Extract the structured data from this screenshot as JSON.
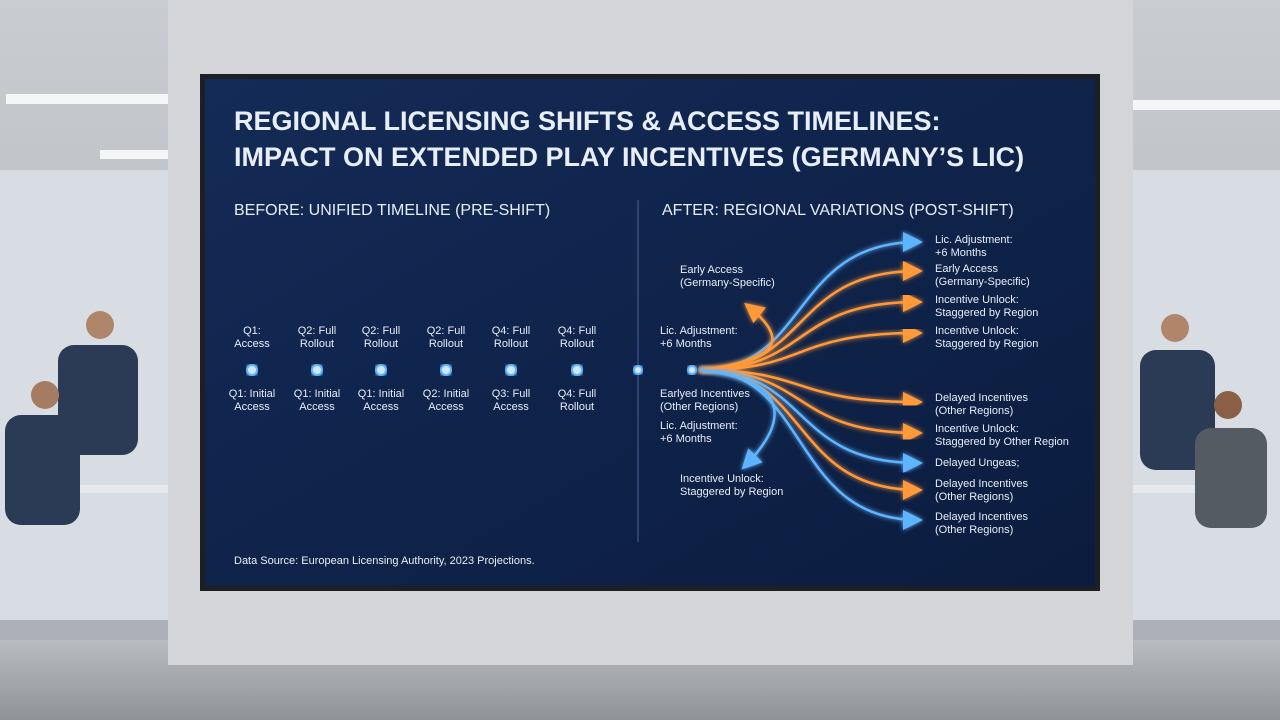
{
  "title": {
    "lines": [
      "REGIONAL LICENSING SHIFTS & ACCESS TIMELINES:",
      "IMPACT ON EXTENDED PLAY INCENTIVES (GERMANY’S LIC)"
    ]
  },
  "before": {
    "heading": "BEFORE: UNIFIED TIMELINE (PRE-SHIFT)",
    "top_labels": [
      [
        "Q1:",
        "Access"
      ],
      [
        "Q2: Full",
        "Rollout"
      ],
      [
        "Q2: Full",
        "Rollout"
      ],
      [
        "Q2: Full",
        "Rollout"
      ],
      [
        "Q4: Full",
        "Rollout"
      ],
      [
        "Q4: Full",
        "Rollout"
      ]
    ],
    "bottom_labels": [
      [
        "Q1: Initial",
        "Access"
      ],
      [
        "Q1: Initial",
        "Access"
      ],
      [
        "Q1: Initial",
        "Access"
      ],
      [
        "Q2: Initial",
        "Access"
      ],
      [
        "Q3: Full",
        "Access"
      ],
      [
        "Q4: Full",
        "Rollout"
      ]
    ]
  },
  "after": {
    "heading": "AFTER: REGIONAL VARIATIONS (POST-SHIFT)",
    "left_labels": [
      [
        "Early Access",
        "(Germany-Specific)"
      ],
      [
        "Lic. Adjustment:",
        "+6 Months"
      ],
      [
        "Earlyed Incentives",
        "(Other Regions)"
      ],
      [
        "Lic. Adjustment:",
        "+6 Months"
      ],
      [
        "Incentive Unlock:",
        "Staggered by Region"
      ]
    ],
    "right_labels": [
      [
        "Lic. Adjustment:",
        "+6 Months"
      ],
      [
        "Early Access",
        "(Germany-Specific)"
      ],
      [
        "Incentive Unlock:",
        "Staggered by Region"
      ],
      [
        "Incentive Unlock:",
        "Staggered by Region"
      ],
      [
        "Delayed Incentives",
        "(Other Regions)"
      ],
      [
        "Incentive Unlock:",
        "Staggered by Other Region"
      ],
      [
        "Delayed Ungeas;"
      ],
      [
        "Delayed Incentives",
        "(Other Regions)"
      ],
      [
        "Delayed Incentives",
        "(Other Regions)"
      ]
    ]
  },
  "source": "Data Source: European Licensing Authority, 2023 Projections."
}
